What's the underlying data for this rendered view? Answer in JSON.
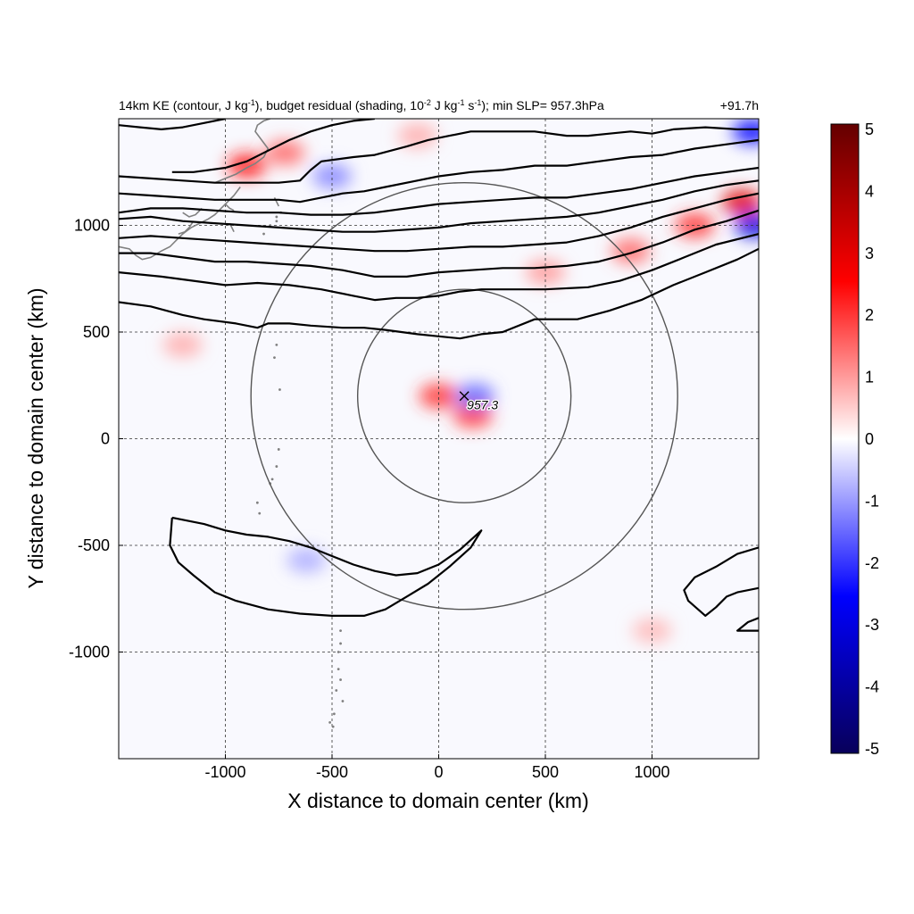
{
  "chart_data": {
    "type": "heatmap",
    "title_left_parts": [
      "14km KE (contour, J kg",
      "-1",
      "), budget residual (shading, 10",
      "-2",
      " J kg",
      "-1",
      " s",
      "-1",
      "); min SLP= 957.3hPa"
    ],
    "title_right": "+91.7h",
    "xlabel": "X distance to domain center (km)",
    "ylabel": "Y distance to domain center (km)",
    "xlim": [
      -1500,
      1500
    ],
    "ylim": [
      -1500,
      1500
    ],
    "x_ticks": [
      -1000,
      -500,
      0,
      500,
      1000
    ],
    "y_ticks": [
      -1000,
      -500,
      0,
      500,
      1000
    ],
    "x_tick_labels": [
      "-1000",
      "-500",
      "0",
      "500",
      "1000"
    ],
    "y_tick_labels": [
      "-1000",
      "-500",
      "0",
      "500",
      "1000"
    ],
    "grid": true,
    "grid_style": "dashed",
    "colorbar": {
      "range": [
        -5,
        5
      ],
      "ticks": [
        5,
        4,
        3,
        2,
        1,
        0,
        -1,
        -2,
        -3,
        -4,
        -5
      ],
      "tick_labels": [
        "5",
        "4",
        "3",
        "2",
        "1",
        "0",
        "-1",
        "-2",
        "-3",
        "-4",
        "-5"
      ],
      "colors": [
        "#08005a",
        "#0000ff",
        "#ffffff",
        "#ff0000",
        "#640000"
      ]
    },
    "storm_center": {
      "x": 120,
      "y": 200,
      "label": "957.3"
    },
    "range_circles": [
      {
        "cx": 120,
        "cy": 200,
        "r": 500
      },
      {
        "cx": 120,
        "cy": 200,
        "r": 1000
      }
    ],
    "shading_features": [
      {
        "x": 0,
        "y": 200,
        "value": 2.0
      },
      {
        "x": 160,
        "y": 110,
        "value": 2.0
      },
      {
        "x": 170,
        "y": 200,
        "value": -1.5
      },
      {
        "x": -900,
        "y": 1280,
        "value": 2.3
      },
      {
        "x": -720,
        "y": 1340,
        "value": 1.5
      },
      {
        "x": 1420,
        "y": 1110,
        "value": 3.0
      },
      {
        "x": 1200,
        "y": 1000,
        "value": 2.0
      },
      {
        "x": 900,
        "y": 880,
        "value": 1.5
      },
      {
        "x": 500,
        "y": 780,
        "value": 1.0
      },
      {
        "x": -500,
        "y": 1230,
        "value": -1.2
      },
      {
        "x": -100,
        "y": 1420,
        "value": 0.8
      },
      {
        "x": 1470,
        "y": 1440,
        "value": -2.5
      },
      {
        "x": 1480,
        "y": 1000,
        "value": -3.0
      },
      {
        "x": -1200,
        "y": 440,
        "value": 0.8
      },
      {
        "x": -620,
        "y": -570,
        "value": -0.8
      },
      {
        "x": 1000,
        "y": -900,
        "value": 0.7
      }
    ],
    "ke_contours": [
      [
        [
          -1500,
          640
        ],
        [
          -1350,
          620
        ],
        [
          -1200,
          580
        ],
        [
          -1100,
          560
        ],
        [
          -950,
          540
        ],
        [
          -850,
          520
        ],
        [
          -800,
          540
        ],
        [
          -700,
          540
        ],
        [
          -600,
          530
        ],
        [
          -450,
          520
        ],
        [
          -350,
          520
        ],
        [
          -250,
          510
        ],
        [
          -100,
          490
        ],
        [
          0,
          480
        ],
        [
          100,
          470
        ],
        [
          200,
          490
        ],
        [
          300,
          500
        ],
        [
          450,
          560
        ],
        [
          550,
          560
        ],
        [
          650,
          560
        ],
        [
          800,
          600
        ],
        [
          950,
          650
        ],
        [
          1100,
          720
        ],
        [
          1250,
          780
        ],
        [
          1400,
          840
        ],
        [
          1500,
          890
        ]
      ],
      [
        [
          -1500,
          780
        ],
        [
          -1300,
          760
        ],
        [
          -1150,
          740
        ],
        [
          -1000,
          720
        ],
        [
          -850,
          730
        ],
        [
          -700,
          720
        ],
        [
          -550,
          700
        ],
        [
          -400,
          670
        ],
        [
          -300,
          650
        ],
        [
          -200,
          660
        ],
        [
          -100,
          660
        ],
        [
          0,
          670
        ],
        [
          100,
          690
        ],
        [
          200,
          700
        ],
        [
          350,
          700
        ],
        [
          500,
          700
        ],
        [
          700,
          710
        ],
        [
          850,
          740
        ],
        [
          1000,
          790
        ],
        [
          1150,
          850
        ],
        [
          1300,
          910
        ],
        [
          1500,
          960
        ]
      ],
      [
        [
          -1500,
          870
        ],
        [
          -1350,
          870
        ],
        [
          -1200,
          850
        ],
        [
          -1050,
          830
        ],
        [
          -900,
          830
        ],
        [
          -750,
          820
        ],
        [
          -600,
          810
        ],
        [
          -450,
          790
        ],
        [
          -300,
          760
        ],
        [
          -150,
          760
        ],
        [
          0,
          780
        ],
        [
          150,
          790
        ],
        [
          300,
          800
        ],
        [
          450,
          800
        ],
        [
          600,
          810
        ],
        [
          750,
          830
        ],
        [
          900,
          870
        ],
        [
          1050,
          920
        ],
        [
          1200,
          980
        ],
        [
          1350,
          1020
        ],
        [
          1500,
          1070
        ]
      ],
      [
        [
          -1500,
          940
        ],
        [
          -1350,
          950
        ],
        [
          -1200,
          940
        ],
        [
          -1050,
          930
        ],
        [
          -900,
          920
        ],
        [
          -750,
          910
        ],
        [
          -600,
          900
        ],
        [
          -450,
          890
        ],
        [
          -300,
          880
        ],
        [
          -150,
          880
        ],
        [
          0,
          890
        ],
        [
          150,
          900
        ],
        [
          300,
          900
        ],
        [
          450,
          910
        ],
        [
          600,
          920
        ],
        [
          750,
          950
        ],
        [
          900,
          990
        ],
        [
          1050,
          1040
        ],
        [
          1200,
          1080
        ],
        [
          1350,
          1120
        ],
        [
          1500,
          1150
        ]
      ],
      [
        [
          -1500,
          1030
        ],
        [
          -1350,
          1040
        ],
        [
          -1200,
          1020
        ],
        [
          -1050,
          1010
        ],
        [
          -900,
          1000
        ],
        [
          -750,
          990
        ],
        [
          -600,
          980
        ],
        [
          -450,
          970
        ],
        [
          -300,
          970
        ],
        [
          -150,
          980
        ],
        [
          0,
          990
        ],
        [
          150,
          1010
        ],
        [
          300,
          1020
        ],
        [
          450,
          1030
        ],
        [
          600,
          1040
        ],
        [
          750,
          1060
        ],
        [
          900,
          1090
        ],
        [
          1050,
          1120
        ],
        [
          1200,
          1160
        ],
        [
          1350,
          1190
        ],
        [
          1500,
          1210
        ]
      ],
      [
        [
          -1500,
          1060
        ],
        [
          -1350,
          1080
        ],
        [
          -1200,
          1080
        ],
        [
          -1050,
          1070
        ],
        [
          -900,
          1060
        ],
        [
          -750,
          1060
        ],
        [
          -600,
          1050
        ],
        [
          -450,
          1050
        ],
        [
          -300,
          1060
        ],
        [
          -150,
          1080
        ],
        [
          0,
          1100
        ],
        [
          150,
          1110
        ],
        [
          300,
          1120
        ],
        [
          450,
          1130
        ],
        [
          600,
          1130
        ],
        [
          750,
          1150
        ],
        [
          900,
          1170
        ],
        [
          1050,
          1200
        ],
        [
          1200,
          1230
        ],
        [
          1350,
          1250
        ],
        [
          1500,
          1270
        ]
      ],
      [
        [
          -1500,
          1150
        ],
        [
          -1350,
          1140
        ],
        [
          -1200,
          1130
        ],
        [
          -1050,
          1120
        ],
        [
          -900,
          1120
        ],
        [
          -750,
          1120
        ],
        [
          -650,
          1110
        ],
        [
          -550,
          1130
        ],
        [
          -450,
          1150
        ],
        [
          -350,
          1160
        ],
        [
          -250,
          1180
        ],
        [
          -100,
          1210
        ],
        [
          0,
          1230
        ],
        [
          150,
          1250
        ],
        [
          300,
          1260
        ],
        [
          450,
          1280
        ],
        [
          600,
          1280
        ],
        [
          750,
          1300
        ],
        [
          900,
          1320
        ],
        [
          1050,
          1330
        ],
        [
          1200,
          1360
        ],
        [
          1350,
          1380
        ],
        [
          1500,
          1400
        ]
      ],
      [
        [
          -1500,
          1230
        ],
        [
          -1350,
          1220
        ],
        [
          -1200,
          1210
        ],
        [
          -1050,
          1200
        ],
        [
          -900,
          1200
        ],
        [
          -750,
          1200
        ],
        [
          -650,
          1210
        ],
        [
          -600,
          1260
        ],
        [
          -550,
          1300
        ],
        [
          -400,
          1320
        ],
        [
          -300,
          1330
        ],
        [
          -150,
          1370
        ],
        [
          -50,
          1400
        ],
        [
          50,
          1420
        ],
        [
          150,
          1440
        ],
        [
          300,
          1440
        ],
        [
          450,
          1440
        ],
        [
          600,
          1420
        ],
        [
          700,
          1420
        ],
        [
          800,
          1430
        ],
        [
          900,
          1440
        ],
        [
          1000,
          1430
        ],
        [
          1100,
          1450
        ],
        [
          1250,
          1460
        ],
        [
          1400,
          1450
        ],
        [
          1500,
          1450
        ]
      ],
      [
        [
          -1250,
          1250
        ],
        [
          -1150,
          1250
        ],
        [
          -1000,
          1270
        ],
        [
          -900,
          1300
        ],
        [
          -800,
          1350
        ],
        [
          -700,
          1400
        ],
        [
          -600,
          1440
        ],
        [
          -500,
          1470
        ],
        [
          -400,
          1490
        ],
        [
          -300,
          1500
        ]
      ],
      [
        [
          -1500,
          1470
        ],
        [
          -1400,
          1460
        ],
        [
          -1300,
          1450
        ],
        [
          -1200,
          1460
        ],
        [
          -1100,
          1480
        ],
        [
          -1000,
          1500
        ]
      ],
      [
        [
          -1250,
          -370
        ],
        [
          -1200,
          -380
        ],
        [
          -1100,
          -400
        ],
        [
          -1000,
          -430
        ],
        [
          -900,
          -450
        ],
        [
          -800,
          -460
        ],
        [
          -700,
          -480
        ],
        [
          -600,
          -510
        ],
        [
          -500,
          -550
        ],
        [
          -400,
          -590
        ],
        [
          -300,
          -620
        ],
        [
          -200,
          -640
        ],
        [
          -100,
          -630
        ],
        [
          0,
          -590
        ],
        [
          100,
          -520
        ],
        [
          200,
          -430
        ],
        [
          150,
          -510
        ],
        [
          50,
          -600
        ],
        [
          -50,
          -680
        ],
        [
          -150,
          -740
        ],
        [
          -250,
          -800
        ],
        [
          -350,
          -830
        ],
        [
          -500,
          -830
        ],
        [
          -650,
          -820
        ],
        [
          -800,
          -800
        ],
        [
          -950,
          -760
        ],
        [
          -1050,
          -720
        ],
        [
          -1150,
          -640
        ],
        [
          -1220,
          -580
        ],
        [
          -1260,
          -500
        ],
        [
          -1250,
          -370
        ]
      ],
      [
        [
          1500,
          -510
        ],
        [
          1400,
          -540
        ],
        [
          1300,
          -600
        ],
        [
          1200,
          -650
        ],
        [
          1150,
          -710
        ],
        [
          1170,
          -760
        ],
        [
          1250,
          -830
        ],
        [
          1300,
          -790
        ],
        [
          1350,
          -740
        ],
        [
          1400,
          -720
        ],
        [
          1500,
          -700
        ]
      ],
      [
        [
          1500,
          -840
        ],
        [
          1450,
          -860
        ],
        [
          1400,
          -900
        ],
        [
          1500,
          -900
        ]
      ]
    ],
    "coastlines": [
      [
        [
          -1500,
          900
        ],
        [
          -1450,
          890
        ],
        [
          -1420,
          860
        ],
        [
          -1390,
          840
        ],
        [
          -1350,
          850
        ],
        [
          -1300,
          880
        ],
        [
          -1260,
          900
        ],
        [
          -1230,
          930
        ],
        [
          -1200,
          960
        ],
        [
          -1160,
          990
        ],
        [
          -1120,
          1010
        ],
        [
          -1080,
          1030
        ],
        [
          -1050,
          1050
        ],
        [
          -1020,
          1080
        ],
        [
          -990,
          1110
        ],
        [
          -960,
          1140
        ],
        [
          -930,
          1180
        ]
      ],
      [
        [
          -1200,
          1060
        ],
        [
          -1170,
          1040
        ],
        [
          -1140,
          1050
        ],
        [
          -1110,
          1080
        ]
      ],
      [
        [
          -1220,
          960
        ],
        [
          -1190,
          970
        ],
        [
          -1170,
          990
        ],
        [
          -1150,
          1020
        ]
      ],
      [
        [
          -1050,
          1200
        ],
        [
          -1000,
          1220
        ],
        [
          -950,
          1240
        ],
        [
          -900,
          1270
        ],
        [
          -860,
          1290
        ],
        [
          -820,
          1320
        ],
        [
          -800,
          1360
        ],
        [
          -830,
          1400
        ],
        [
          -860,
          1440
        ],
        [
          -850,
          1470
        ],
        [
          -820,
          1490
        ],
        [
          -790,
          1500
        ]
      ],
      [
        [
          -1000,
          1100
        ],
        [
          -980,
          1080
        ],
        [
          -960,
          1070
        ]
      ],
      [
        [
          -770,
          1130
        ],
        [
          -760,
          1110
        ],
        [
          -750,
          1090
        ]
      ],
      [
        [
          -980,
          1010
        ],
        [
          -970,
          990
        ],
        [
          -960,
          970
        ]
      ]
    ],
    "island_dots": [
      [
        -760,
        1040
      ],
      [
        -790,
        1000
      ],
      [
        -820,
        960
      ],
      [
        -740,
        1060
      ],
      [
        -760,
        1020
      ],
      [
        -760,
        440
      ],
      [
        -770,
        380
      ],
      [
        -745,
        230
      ],
      [
        -750,
        -50
      ],
      [
        -760,
        -130
      ],
      [
        -780,
        -190
      ],
      [
        -790,
        -210
      ],
      [
        -840,
        -350
      ],
      [
        -850,
        -300
      ],
      [
        -460,
        -900
      ],
      [
        -460,
        -960
      ],
      [
        -470,
        -1000
      ],
      [
        -470,
        -1080
      ],
      [
        -460,
        -1130
      ],
      [
        -480,
        -1180
      ],
      [
        -450,
        -1230
      ],
      [
        -490,
        -1290
      ],
      [
        -510,
        -1330
      ],
      [
        -495,
        -1350
      ]
    ]
  }
}
